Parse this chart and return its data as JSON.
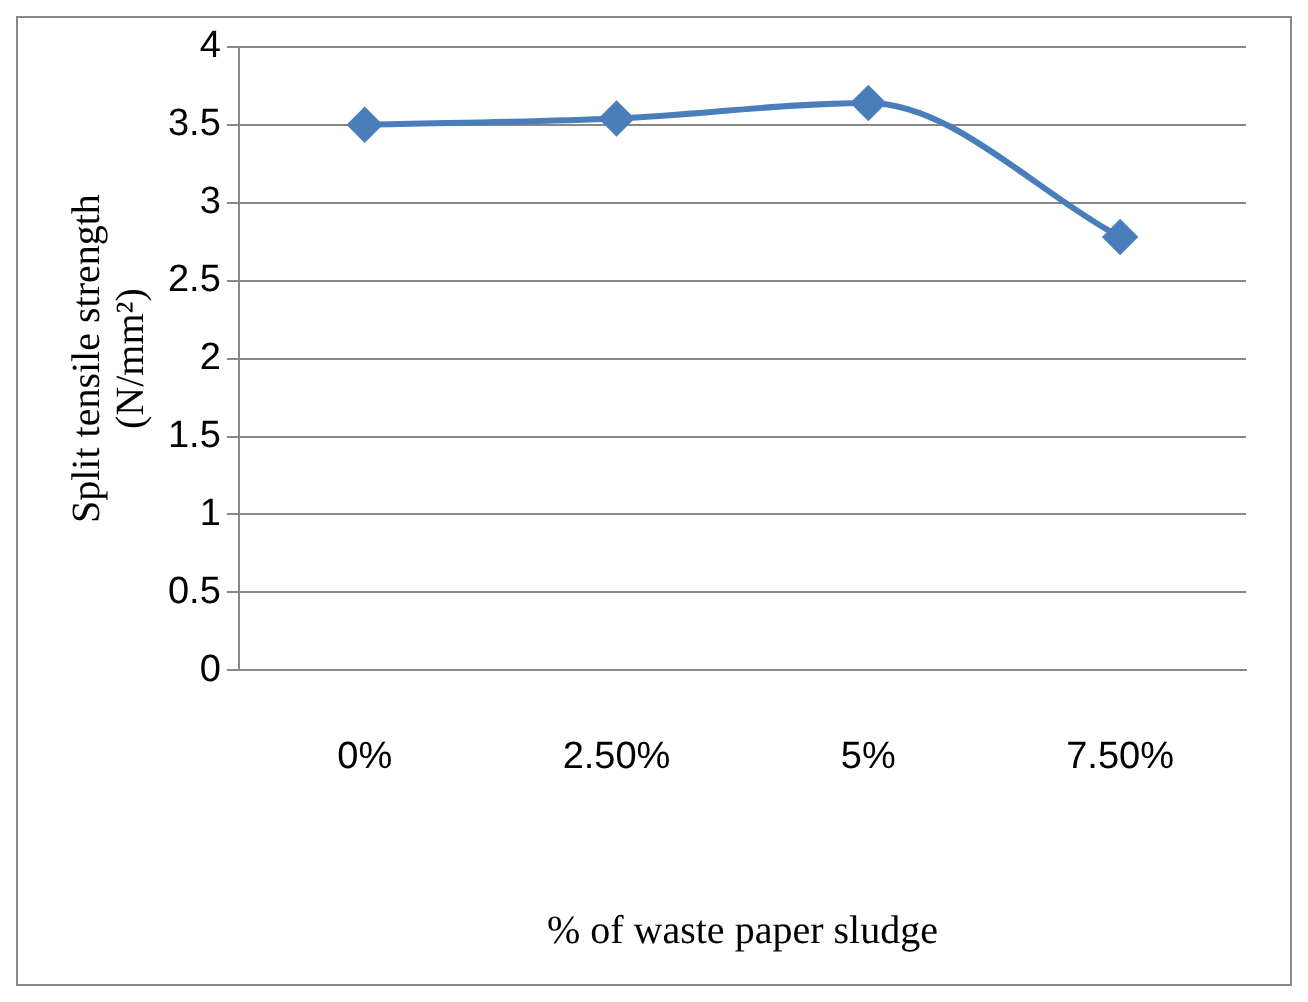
{
  "chart_data": {
    "type": "line",
    "xlabel": "% of waste paper sludge",
    "ylabel": "Split tensile strength (N/mm²)",
    "categories": [
      "0%",
      "2.50%",
      "5%",
      "7.50%"
    ],
    "series": [
      {
        "color": "#4a7ebb",
        "values": [
          3.5,
          3.54,
          3.64,
          2.78
        ]
      }
    ],
    "ylim": [
      0,
      4
    ],
    "yticks": [
      0,
      0.5,
      1,
      1.5,
      2,
      2.5,
      3,
      3.5,
      4
    ],
    "grid": "y",
    "legend": false,
    "marker": "diamond",
    "line_style": "solid"
  }
}
